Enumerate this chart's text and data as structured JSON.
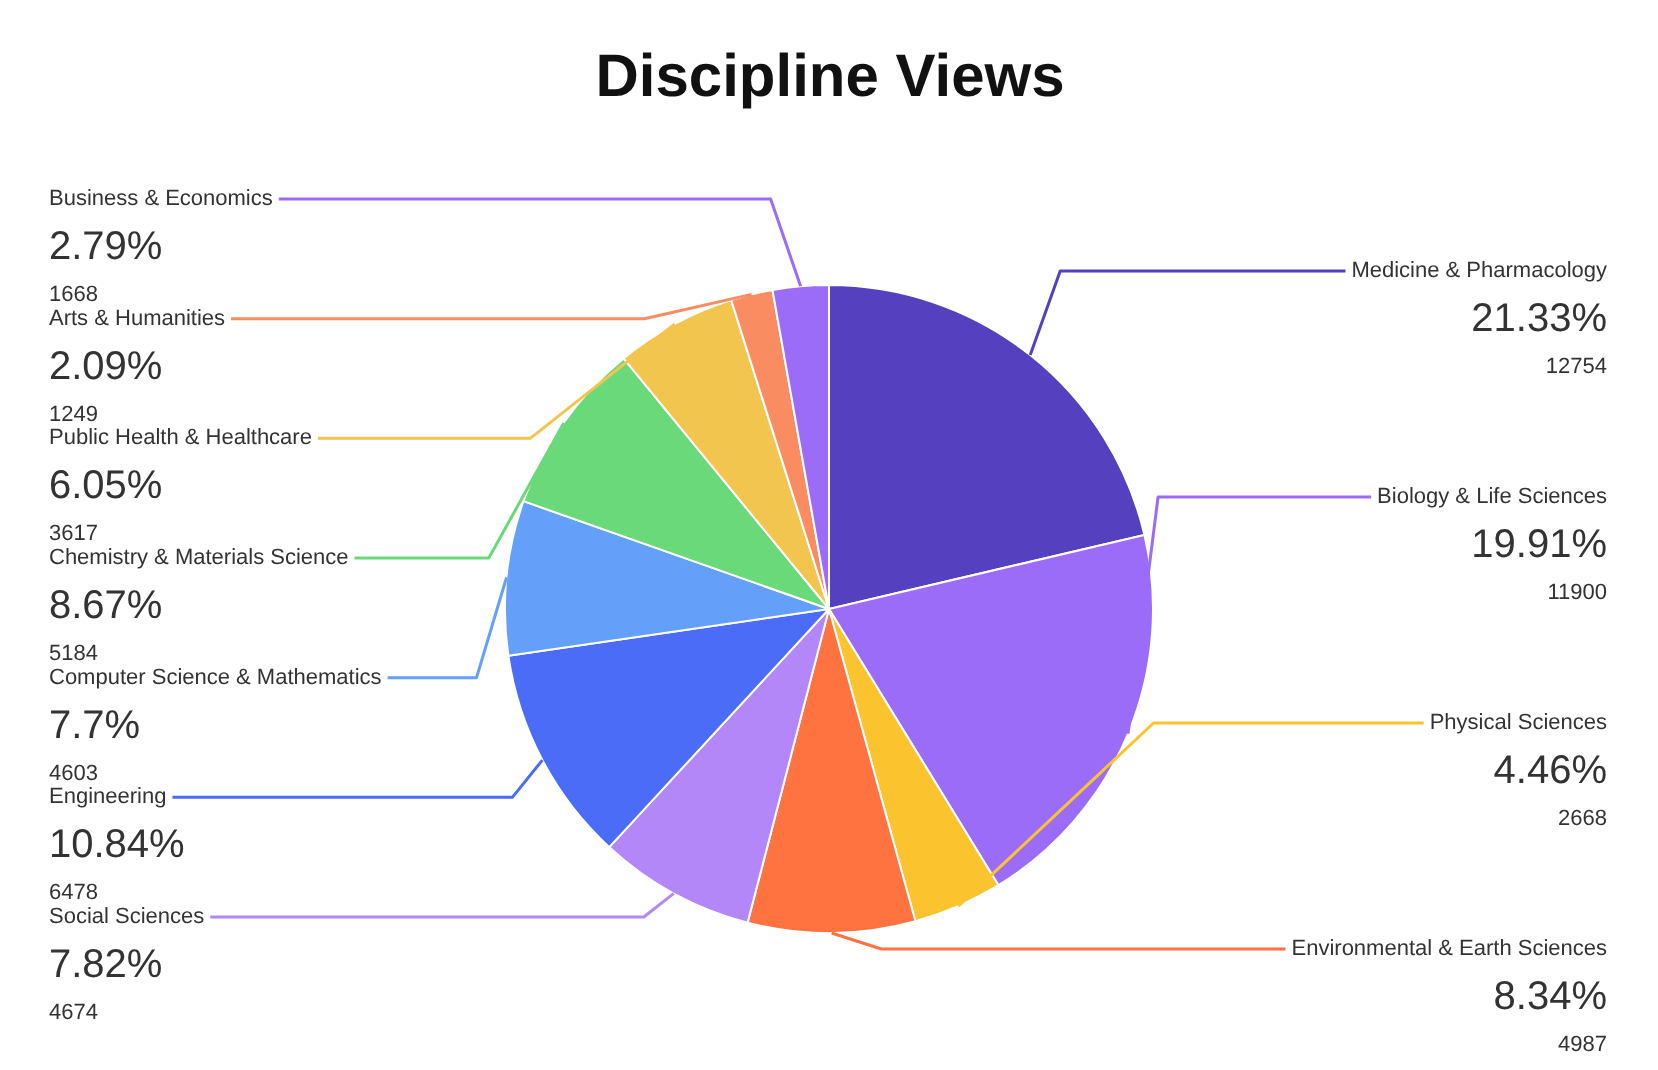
{
  "chart_data": {
    "type": "pie",
    "title": "Discipline Views",
    "categories": [
      "Medicine & Pharmacology",
      "Biology & Life Sciences",
      "Physical Sciences",
      "Environmental & Earth Sciences",
      "Social Sciences",
      "Engineering",
      "Computer Science & Mathematics",
      "Chemistry & Materials Science",
      "Public Health & Healthcare",
      "Arts & Humanities",
      "Business & Economics"
    ],
    "values": [
      21.33,
      19.91,
      4.46,
      8.34,
      7.82,
      10.84,
      7.7,
      8.67,
      6.05,
      2.09,
      2.79
    ],
    "value_labels": [
      "21.33%\n12754",
      "19.91%\n11900",
      "4.46%\n2668",
      "8.34%\n4987",
      "7.82%\n4674",
      "10.84%\n6478",
      "7.7%\n4603",
      "8.67%\n5184",
      "6.05%\n3617",
      "2.09%\n1249",
      "2.79%\n1668"
    ],
    "colors": [
      "#5540c0",
      "#9b6cf8",
      "#fbc42f",
      "#ff7340",
      "#b487f8",
      "#4a6cf7",
      "#64a0fa",
      "#6ad97a",
      "#f2c54e",
      "#fa8c62",
      "#9b6cf8"
    ]
  }
}
